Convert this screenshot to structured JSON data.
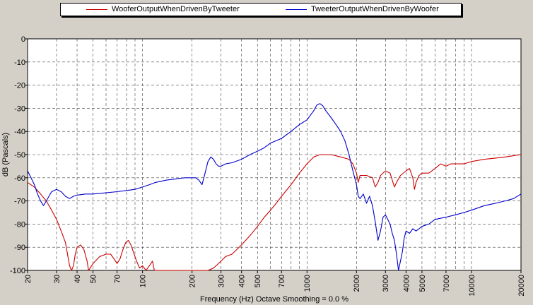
{
  "chart_data": {
    "type": "line",
    "title": "",
    "xlabel": "Frequency (Hz) Octave Smoothing = 0.0 %",
    "ylabel": "dB (Pascals)",
    "xscale": "log",
    "xlim": [
      20,
      20000
    ],
    "ylim": [
      -100,
      0
    ],
    "grid": true,
    "legend_position": "top",
    "x_ticks": [
      {
        "value": 20,
        "label": "20"
      },
      {
        "value": 30,
        "label": "30"
      },
      {
        "value": 40,
        "label": "40"
      },
      {
        "value": 50,
        "label": "50"
      },
      {
        "value": 70,
        "label": "70"
      },
      {
        "value": 100,
        "label": "100"
      },
      {
        "value": 200,
        "label": "200"
      },
      {
        "value": 300,
        "label": "300"
      },
      {
        "value": 400,
        "label": "400"
      },
      {
        "value": 500,
        "label": "500"
      },
      {
        "value": 700,
        "label": "700"
      },
      {
        "value": 1000,
        "label": "1000"
      },
      {
        "value": 2000,
        "label": "2000"
      },
      {
        "value": 3000,
        "label": "3000"
      },
      {
        "value": 4000,
        "label": "4000"
      },
      {
        "value": 5000,
        "label": "5000"
      },
      {
        "value": 7000,
        "label": "7000"
      },
      {
        "value": 10000,
        "label": "10000"
      },
      {
        "value": 20000,
        "label": "20000"
      }
    ],
    "minor_x_grid": [
      60,
      80,
      90,
      600,
      800,
      900,
      6000,
      8000,
      9000
    ],
    "y_ticks": [
      {
        "value": 0,
        "label": "0"
      },
      {
        "value": -10,
        "label": "-10"
      },
      {
        "value": -20,
        "label": "-20"
      },
      {
        "value": -30,
        "label": "-30"
      },
      {
        "value": -40,
        "label": "-40"
      },
      {
        "value": -50,
        "label": "-50"
      },
      {
        "value": -60,
        "label": "-60"
      },
      {
        "value": -70,
        "label": "-70"
      },
      {
        "value": -80,
        "label": "-80"
      },
      {
        "value": -90,
        "label": "-90"
      },
      {
        "value": -100,
        "label": "-100"
      }
    ],
    "series": [
      {
        "name": "WooferOutputWhenDrivenByTweeter",
        "color": "#cc0000",
        "points": [
          [
            20,
            -62
          ],
          [
            22,
            -64
          ],
          [
            24,
            -67
          ],
          [
            26,
            -70
          ],
          [
            28,
            -74
          ],
          [
            30,
            -78
          ],
          [
            32,
            -83
          ],
          [
            34,
            -88
          ],
          [
            35,
            -93
          ],
          [
            36,
            -98
          ],
          [
            37,
            -100
          ],
          [
            38,
            -98
          ],
          [
            39,
            -93
          ],
          [
            40,
            -90
          ],
          [
            42,
            -89
          ],
          [
            44,
            -91
          ],
          [
            46,
            -96
          ],
          [
            47,
            -100
          ],
          [
            48,
            -99
          ],
          [
            50,
            -97
          ],
          [
            55,
            -94
          ],
          [
            60,
            -93
          ],
          [
            64,
            -93
          ],
          [
            67,
            -95
          ],
          [
            70,
            -97
          ],
          [
            73,
            -95
          ],
          [
            76,
            -91
          ],
          [
            79,
            -88
          ],
          [
            82,
            -87
          ],
          [
            85,
            -89
          ],
          [
            88,
            -92
          ],
          [
            92,
            -96
          ],
          [
            96,
            -99
          ],
          [
            100,
            -98
          ],
          [
            105,
            -100
          ],
          [
            110,
            -98
          ],
          [
            115,
            -96
          ],
          [
            118,
            -100
          ],
          [
            125,
            -100
          ],
          [
            200,
            -100
          ],
          [
            250,
            -100
          ],
          [
            270,
            -99
          ],
          [
            280,
            -98
          ],
          [
            300,
            -96
          ],
          [
            320,
            -94
          ],
          [
            350,
            -93
          ],
          [
            400,
            -89
          ],
          [
            450,
            -85
          ],
          [
            500,
            -81
          ],
          [
            550,
            -77
          ],
          [
            600,
            -74
          ],
          [
            650,
            -71
          ],
          [
            700,
            -68
          ],
          [
            800,
            -63
          ],
          [
            900,
            -58
          ],
          [
            1000,
            -54
          ],
          [
            1100,
            -51
          ],
          [
            1200,
            -50
          ],
          [
            1400,
            -50
          ],
          [
            1600,
            -51
          ],
          [
            1800,
            -52
          ],
          [
            1900,
            -54
          ],
          [
            2000,
            -58
          ],
          [
            2050,
            -62
          ],
          [
            2100,
            -59
          ],
          [
            2300,
            -59
          ],
          [
            2500,
            -60
          ],
          [
            2600,
            -64
          ],
          [
            2700,
            -62
          ],
          [
            2800,
            -59
          ],
          [
            3000,
            -57
          ],
          [
            3200,
            -58
          ],
          [
            3300,
            -61
          ],
          [
            3400,
            -64
          ],
          [
            3500,
            -62
          ],
          [
            3700,
            -59
          ],
          [
            4000,
            -57
          ],
          [
            4200,
            -56
          ],
          [
            4400,
            -60
          ],
          [
            4500,
            -65
          ],
          [
            4600,
            -62
          ],
          [
            4800,
            -59
          ],
          [
            5000,
            -58
          ],
          [
            5500,
            -58
          ],
          [
            6000,
            -56
          ],
          [
            6500,
            -54
          ],
          [
            7000,
            -55
          ],
          [
            7500,
            -54
          ],
          [
            8000,
            -54
          ],
          [
            9000,
            -54
          ],
          [
            10000,
            -53
          ],
          [
            12000,
            -52
          ],
          [
            14000,
            -51.5
          ],
          [
            16000,
            -51
          ],
          [
            18000,
            -50.5
          ],
          [
            20000,
            -50
          ]
        ]
      },
      {
        "name": "TweeterOutputWhenDrivenByWoofer",
        "color": "#0000cc",
        "points": [
          [
            20,
            -57
          ],
          [
            21,
            -60
          ],
          [
            22,
            -63
          ],
          [
            23,
            -67
          ],
          [
            24,
            -70
          ],
          [
            25,
            -72
          ],
          [
            26,
            -70
          ],
          [
            27,
            -68
          ],
          [
            28,
            -66
          ],
          [
            30,
            -65
          ],
          [
            32,
            -66
          ],
          [
            34,
            -68
          ],
          [
            36,
            -69
          ],
          [
            38,
            -68
          ],
          [
            40,
            -67.5
          ],
          [
            45,
            -67
          ],
          [
            50,
            -67
          ],
          [
            60,
            -66.5
          ],
          [
            70,
            -66
          ],
          [
            80,
            -65.5
          ],
          [
            90,
            -65
          ],
          [
            100,
            -64
          ],
          [
            110,
            -63
          ],
          [
            120,
            -62
          ],
          [
            140,
            -61
          ],
          [
            160,
            -60.5
          ],
          [
            180,
            -60
          ],
          [
            200,
            -60
          ],
          [
            210,
            -60
          ],
          [
            220,
            -61
          ],
          [
            230,
            -63
          ],
          [
            240,
            -58
          ],
          [
            250,
            -53
          ],
          [
            260,
            -51
          ],
          [
            270,
            -52
          ],
          [
            280,
            -54
          ],
          [
            290,
            -55
          ],
          [
            300,
            -55
          ],
          [
            320,
            -54
          ],
          [
            350,
            -53.5
          ],
          [
            400,
            -52
          ],
          [
            450,
            -50
          ],
          [
            500,
            -48.5
          ],
          [
            550,
            -47
          ],
          [
            600,
            -45
          ],
          [
            650,
            -44
          ],
          [
            700,
            -43
          ],
          [
            800,
            -40
          ],
          [
            900,
            -37
          ],
          [
            1000,
            -35
          ],
          [
            1100,
            -31
          ],
          [
            1150,
            -28.5
          ],
          [
            1200,
            -28
          ],
          [
            1250,
            -29
          ],
          [
            1300,
            -31
          ],
          [
            1400,
            -34
          ],
          [
            1500,
            -37
          ],
          [
            1600,
            -40
          ],
          [
            1700,
            -44
          ],
          [
            1800,
            -50
          ],
          [
            1900,
            -57
          ],
          [
            2000,
            -63
          ],
          [
            2050,
            -68
          ],
          [
            2100,
            -69
          ],
          [
            2200,
            -67
          ],
          [
            2300,
            -71
          ],
          [
            2400,
            -68
          ],
          [
            2500,
            -72
          ],
          [
            2600,
            -79
          ],
          [
            2700,
            -87
          ],
          [
            2800,
            -83
          ],
          [
            2900,
            -77
          ],
          [
            3000,
            -76
          ],
          [
            3200,
            -80
          ],
          [
            3300,
            -84
          ],
          [
            3400,
            -87
          ],
          [
            3500,
            -93
          ],
          [
            3600,
            -100
          ],
          [
            3700,
            -96
          ],
          [
            3800,
            -92
          ],
          [
            3900,
            -86
          ],
          [
            4000,
            -83
          ],
          [
            4200,
            -84
          ],
          [
            4400,
            -82
          ],
          [
            4600,
            -83
          ],
          [
            4800,
            -82
          ],
          [
            5000,
            -81
          ],
          [
            5500,
            -80
          ],
          [
            6000,
            -78
          ],
          [
            7000,
            -77
          ],
          [
            8000,
            -76
          ],
          [
            9000,
            -75
          ],
          [
            10000,
            -74
          ],
          [
            12000,
            -72
          ],
          [
            14000,
            -71
          ],
          [
            16000,
            -70
          ],
          [
            18000,
            -69
          ],
          [
            20000,
            -67
          ]
        ]
      }
    ]
  }
}
